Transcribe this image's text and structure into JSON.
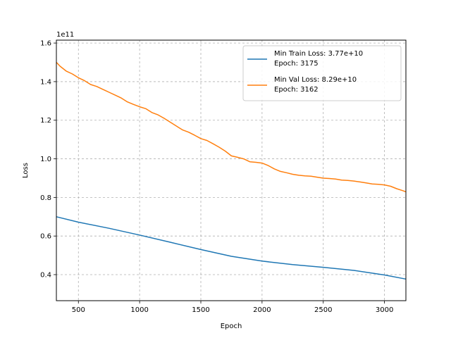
{
  "chart_data": {
    "type": "line",
    "xlabel": "Epoch",
    "ylabel": "Loss",
    "y_offset_label": "1e11",
    "xlim": [
      320,
      3175
    ],
    "ylim": [
      0.265,
      1.615
    ],
    "x_ticks": [
      500,
      1000,
      1500,
      2000,
      2500,
      3000
    ],
    "x_tick_labels": [
      "500",
      "1000",
      "1500",
      "2000",
      "2500",
      "3000"
    ],
    "y_ticks": [
      0.4,
      0.6,
      0.8,
      1.0,
      1.2,
      1.4,
      1.6
    ],
    "y_tick_labels": [
      "0.4",
      "0.6",
      "0.8",
      "1.0",
      "1.2",
      "1.4",
      "1.6"
    ],
    "grid": true,
    "legend_position": "top-right",
    "series": [
      {
        "name": "Min Train Loss: 3.77e+10\nEpoch: 3175",
        "legend_line1": "Min Train Loss: 3.77e+10",
        "legend_line2": "Epoch: 3175",
        "color": "#1f77b4",
        "x": [
          320,
          500,
          750,
          1000,
          1250,
          1500,
          1750,
          2000,
          2250,
          2500,
          2750,
          3000,
          3175
        ],
        "y": [
          0.7,
          0.672,
          0.64,
          0.605,
          0.568,
          0.53,
          0.495,
          0.47,
          0.452,
          0.438,
          0.422,
          0.398,
          0.377
        ]
      },
      {
        "name": "Min Val Loss: 8.29e+10\nEpoch: 3162",
        "legend_line1": "Min Val Loss: 8.29e+10",
        "legend_line2": "Epoch: 3162",
        "color": "#ff7f0e",
        "x": [
          320,
          350,
          400,
          450,
          500,
          550,
          600,
          650,
          700,
          750,
          800,
          850,
          900,
          950,
          1000,
          1050,
          1100,
          1150,
          1200,
          1250,
          1300,
          1350,
          1400,
          1450,
          1500,
          1550,
          1600,
          1650,
          1700,
          1750,
          1800,
          1850,
          1900,
          1950,
          2000,
          2050,
          2100,
          2150,
          2200,
          2250,
          2300,
          2350,
          2400,
          2450,
          2500,
          2550,
          2600,
          2650,
          2700,
          2750,
          2800,
          2850,
          2900,
          2950,
          3000,
          3050,
          3100,
          3150,
          3175
        ],
        "y": [
          1.5,
          1.48,
          1.455,
          1.44,
          1.42,
          1.405,
          1.385,
          1.375,
          1.36,
          1.345,
          1.33,
          1.315,
          1.295,
          1.282,
          1.27,
          1.26,
          1.24,
          1.228,
          1.21,
          1.19,
          1.17,
          1.15,
          1.138,
          1.122,
          1.105,
          1.095,
          1.078,
          1.06,
          1.04,
          1.015,
          1.008,
          1.0,
          0.985,
          0.982,
          0.978,
          0.965,
          0.948,
          0.935,
          0.928,
          0.92,
          0.915,
          0.912,
          0.91,
          0.905,
          0.9,
          0.898,
          0.895,
          0.89,
          0.888,
          0.885,
          0.88,
          0.875,
          0.87,
          0.868,
          0.865,
          0.858,
          0.845,
          0.835,
          0.829
        ]
      }
    ]
  }
}
